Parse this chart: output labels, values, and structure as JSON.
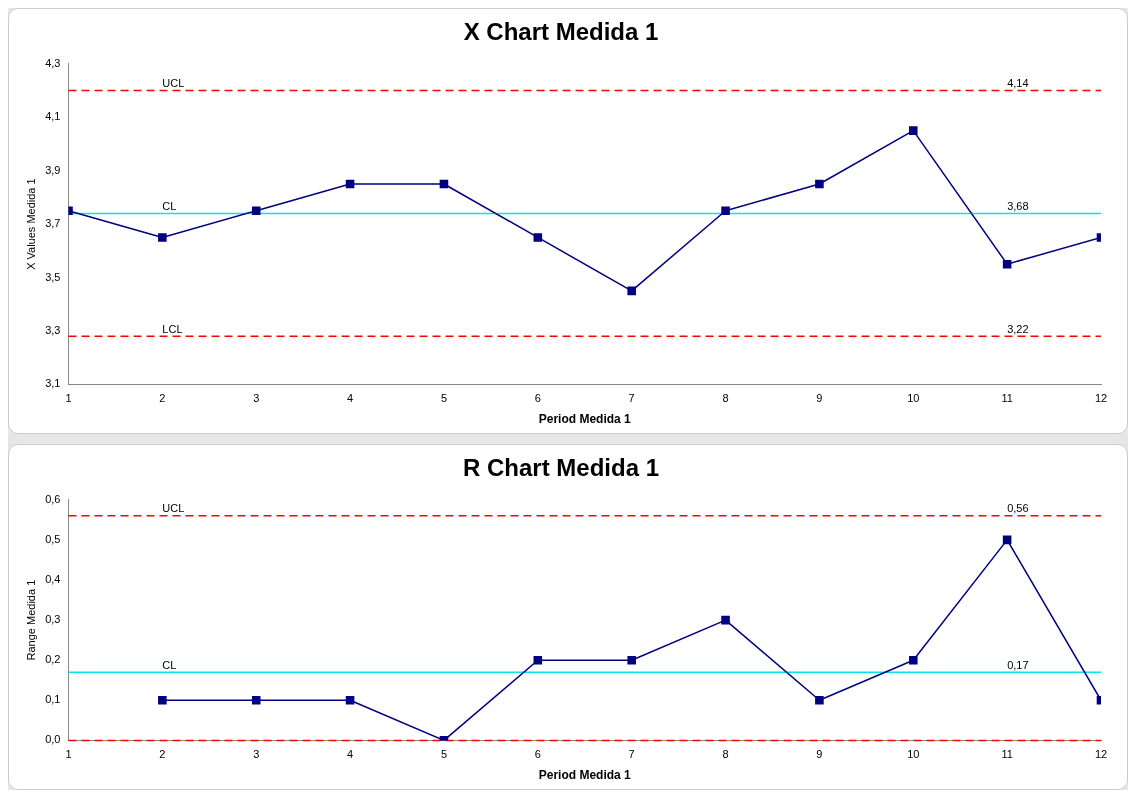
{
  "chart_data": [
    {
      "type": "line",
      "title": "X Chart Medida 1",
      "xlabel": "Period Medida 1",
      "ylabel": "X Values Medida 1",
      "x": [
        1,
        2,
        3,
        4,
        5,
        6,
        7,
        8,
        9,
        10,
        11,
        12
      ],
      "xlim": [
        1,
        12
      ],
      "xticks": [
        1,
        2,
        3,
        4,
        5,
        6,
        7,
        8,
        9,
        10,
        11,
        12
      ],
      "ylim": [
        3.1,
        4.3
      ],
      "yticks": [
        {
          "value": 3.1,
          "label": "3,1"
        },
        {
          "value": 3.3,
          "label": "3,3"
        },
        {
          "value": 3.5,
          "label": "3,5"
        },
        {
          "value": 3.7,
          "label": "3,7"
        },
        {
          "value": 3.9,
          "label": "3,9"
        },
        {
          "value": 4.1,
          "label": "4,1"
        },
        {
          "value": 4.3,
          "label": "4,3"
        }
      ],
      "series": [
        {
          "color": "#000080",
          "values": [
            3.75,
            3.65,
            3.75,
            3.85,
            3.85,
            3.65,
            3.45,
            3.75,
            3.85,
            4.05,
            3.55,
            3.65
          ]
        }
      ],
      "ref_lines": [
        {
          "axis": "y",
          "value": 4.2,
          "label": "UCL",
          "color": "#ff0000",
          "line_style": "dashed"
        },
        {
          "axis": "y",
          "value": 3.74,
          "label": "CL",
          "color": "#00e5ee",
          "line_style": "solid"
        },
        {
          "axis": "y",
          "value": 3.28,
          "label": "LCL",
          "color": "#ff0000",
          "line_style": "dashed"
        }
      ],
      "annotations": [
        "4,14",
        "3,68",
        "3,22"
      ],
      "marker": "square",
      "line_style": "solid",
      "grid": false,
      "legend": false
    },
    {
      "type": "line",
      "title": "R Chart Medida 1",
      "xlabel": "Period Medida 1",
      "ylabel": "Range Medida 1",
      "x": [
        2,
        3,
        4,
        5,
        6,
        7,
        8,
        9,
        10,
        11,
        12
      ],
      "xlim": [
        1,
        12
      ],
      "xticks": [
        1,
        2,
        3,
        4,
        5,
        6,
        7,
        8,
        9,
        10,
        11,
        12
      ],
      "ylim": [
        0,
        0.6
      ],
      "yticks": [
        {
          "value": 0,
          "label": "0,0"
        },
        {
          "value": 0.1,
          "label": "0,1"
        },
        {
          "value": 0.2,
          "label": "0,2"
        },
        {
          "value": 0.3,
          "label": "0,3"
        },
        {
          "value": 0.4,
          "label": "0,4"
        },
        {
          "value": 0.5,
          "label": "0,5"
        },
        {
          "value": 0.6,
          "label": "0,6"
        }
      ],
      "series": [
        {
          "color": "#000080",
          "values": [
            0.1,
            0.1,
            0.1,
            0,
            0.2,
            0.2,
            0.3,
            0.1,
            0.2,
            0.5,
            0.1
          ]
        }
      ],
      "ref_lines": [
        {
          "axis": "y",
          "value": 0.56,
          "label": "UCL",
          "color": "#ff0000",
          "line_style": "dashed"
        },
        {
          "axis": "y",
          "value": 0.17,
          "label": "CL",
          "color": "#00e5ee",
          "line_style": "solid"
        },
        {
          "axis": "y",
          "value": 0,
          "color": "#ff0000",
          "line_style": "dashed"
        }
      ],
      "annotations": [
        "0,56",
        "0,17"
      ],
      "marker": "square",
      "line_style": "solid",
      "grid": false,
      "legend": false
    }
  ]
}
